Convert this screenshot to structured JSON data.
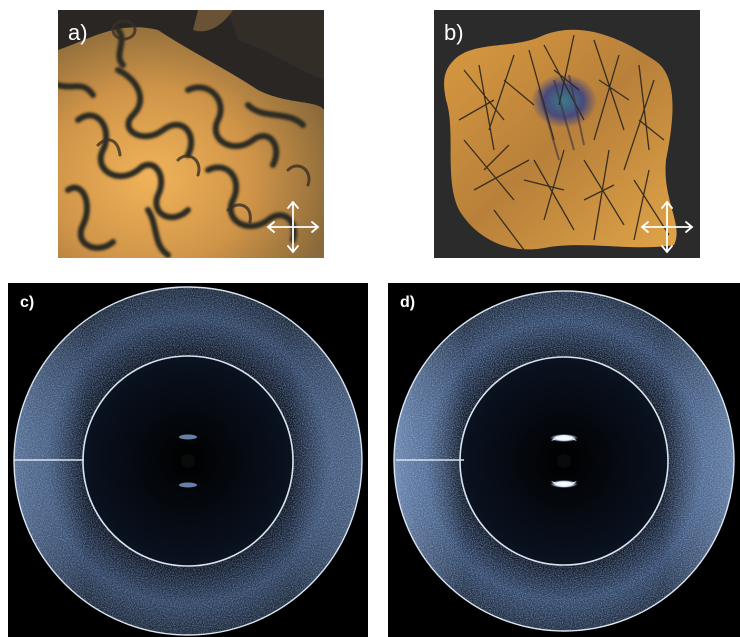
{
  "figure": {
    "panels": [
      {
        "id": "a",
        "label": "a)",
        "kind": "polarized-optical-micrograph",
        "texture": "schlieren"
      },
      {
        "id": "b",
        "label": "b)",
        "kind": "polarized-optical-micrograph",
        "texture": "fan-shaped"
      },
      {
        "id": "c",
        "label": "c)",
        "kind": "2d-x-ray-diffraction-pattern"
      },
      {
        "id": "d",
        "label": "d)",
        "kind": "2d-x-ray-diffraction-pattern"
      }
    ],
    "icons": {
      "polarizer": "crossed-polarizers-icon"
    },
    "colors": {
      "background": "#ffffff",
      "pom_bright": "#e0a048",
      "pom_dark": "#2a2624",
      "xrd_background": "#000000",
      "xrd_ring": "#d8e4f0",
      "xrd_diffuse": "#8fb0d8"
    }
  }
}
